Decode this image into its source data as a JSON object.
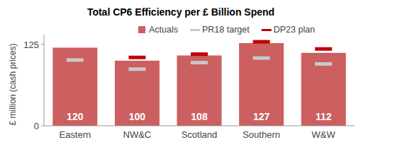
{
  "chart_data": {
    "type": "bar",
    "title": "Total CP6 Efficiency per £ Billion Spend",
    "ylabel": "£ million (cash prices)",
    "categories": [
      "Eastern",
      "NW&C",
      "Scotland",
      "Southern",
      "W&W"
    ],
    "series": [
      {
        "name": "Actuals",
        "type": "bar",
        "color": "#cc5f5f",
        "values": [
          120,
          100,
          108,
          127,
          112
        ]
      },
      {
        "name": "PR18 target",
        "type": "scatter",
        "marker": "dash",
        "color": "#c8c8c8",
        "values": [
          101,
          87,
          97,
          104,
          95
        ]
      },
      {
        "name": "DP23 plan",
        "type": "scatter",
        "marker": "dash",
        "color": "#c00000",
        "values": [
          null,
          105,
          110,
          129,
          118
        ]
      }
    ],
    "ylim": [
      0,
      140
    ],
    "yticks": [
      0,
      125
    ],
    "grid": false,
    "legend": "top",
    "data_labels": true
  }
}
